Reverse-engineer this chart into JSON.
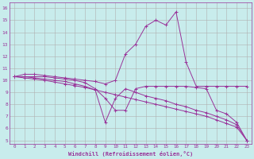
{
  "xlabel": "Windchill (Refroidissement éolien,°C)",
  "background_color": "#c8ecec",
  "grid_color": "#b0b0b0",
  "line_color": "#993399",
  "xlim": [
    -0.5,
    23.5
  ],
  "ylim": [
    4.7,
    16.5
  ],
  "xticks": [
    0,
    1,
    2,
    3,
    4,
    5,
    6,
    7,
    8,
    9,
    10,
    11,
    12,
    13,
    14,
    15,
    16,
    17,
    18,
    19,
    20,
    21,
    22,
    23
  ],
  "yticks": [
    5,
    6,
    7,
    8,
    9,
    10,
    11,
    12,
    13,
    14,
    15,
    16
  ],
  "lines": [
    {
      "x": [
        0,
        1,
        2,
        3,
        4,
        5,
        6,
        7,
        8,
        9,
        10,
        11,
        12,
        13,
        14,
        15,
        16,
        17,
        18,
        19,
        20,
        21,
        22,
        23
      ],
      "y": [
        10.3,
        10.5,
        10.5,
        10.4,
        10.3,
        10.2,
        10.1,
        10.0,
        9.9,
        9.7,
        10.0,
        12.2,
        13.0,
        14.5,
        15.0,
        14.6,
        15.7,
        11.5,
        9.5,
        9.5,
        9.5,
        9.5,
        9.5,
        9.5
      ]
    },
    {
      "x": [
        0,
        1,
        2,
        3,
        4,
        5,
        6,
        7,
        8,
        9,
        10,
        11,
        12,
        13,
        14,
        15,
        16,
        17,
        18,
        19,
        20,
        21,
        22,
        23
      ],
      "y": [
        10.3,
        10.3,
        10.3,
        10.3,
        10.2,
        10.1,
        10.0,
        9.8,
        9.3,
        8.5,
        7.5,
        7.5,
        9.3,
        9.5,
        9.5,
        9.5,
        9.5,
        9.5,
        9.4,
        9.3,
        7.5,
        7.2,
        6.5,
        5.0
      ]
    },
    {
      "x": [
        0,
        1,
        2,
        3,
        4,
        5,
        6,
        7,
        8,
        9,
        10,
        11,
        12,
        13,
        14,
        15,
        16,
        17,
        18,
        19,
        20,
        21,
        22,
        23
      ],
      "y": [
        10.3,
        10.2,
        10.1,
        10.0,
        9.85,
        9.7,
        9.55,
        9.4,
        9.2,
        9.0,
        8.8,
        8.6,
        8.4,
        8.2,
        8.0,
        7.8,
        7.6,
        7.4,
        7.2,
        7.0,
        6.7,
        6.4,
        6.1,
        5.0
      ]
    },
    {
      "x": [
        0,
        1,
        2,
        3,
        4,
        5,
        6,
        7,
        8,
        9,
        10,
        11,
        12,
        13,
        14,
        15,
        16,
        17,
        18,
        19,
        20,
        21,
        22,
        23
      ],
      "y": [
        10.3,
        10.3,
        10.2,
        10.1,
        10.0,
        9.9,
        9.7,
        9.5,
        9.2,
        6.5,
        8.5,
        9.3,
        9.0,
        8.7,
        8.5,
        8.3,
        8.0,
        7.8,
        7.5,
        7.3,
        7.0,
        6.7,
        6.3,
        5.0
      ]
    }
  ]
}
